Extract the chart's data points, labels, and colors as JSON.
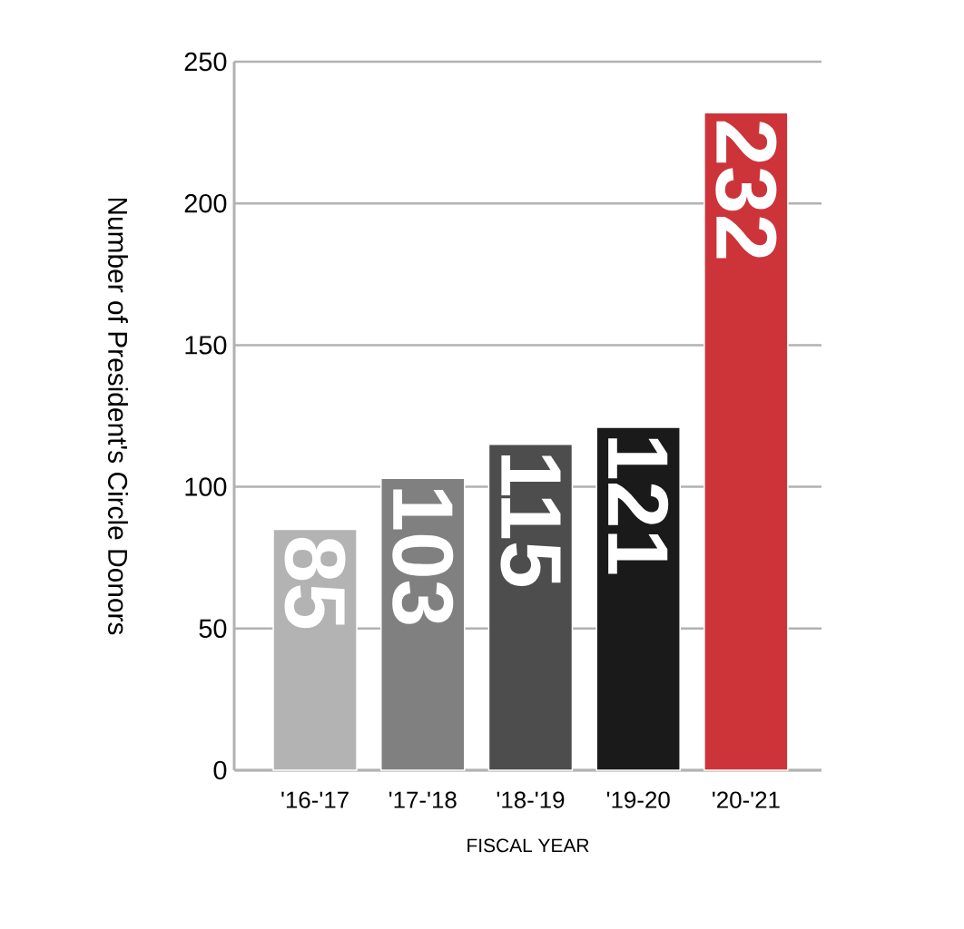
{
  "chart_data": {
    "type": "bar",
    "xlabel": "FISCAL YEAR",
    "ylabel": "Number of President's Circle Donors",
    "categories": [
      "'16-'17",
      "'17-'18",
      "'18-'19",
      "'19-20",
      "'20-'21"
    ],
    "values": [
      85,
      103,
      115,
      121,
      232
    ],
    "colors": [
      "#b3b3b3",
      "#808080",
      "#4d4d4d",
      "#1a1a1a",
      "#cc343a"
    ],
    "ylim": [
      0,
      250
    ],
    "yticks": [
      0,
      50,
      100,
      150,
      200,
      250
    ],
    "grid": "y",
    "data_labels": true
  }
}
